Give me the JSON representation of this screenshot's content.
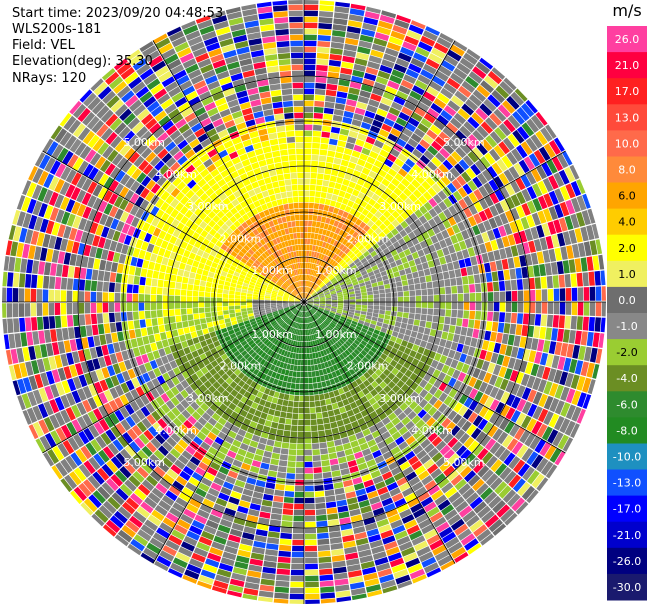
{
  "header": {
    "start_time": "Start time: 2023/09/20 04:48:53",
    "instrument": "WLS200s-181",
    "field": "Field: VEL",
    "elevation": "Elevation(deg): 35.30",
    "nrays": "NRays: 120"
  },
  "colorbar": {
    "unit": "m/s",
    "ticks": [
      "26.0",
      "21.0",
      "17.0",
      "13.0",
      "10.0",
      "8.0",
      "6.0",
      "4.0",
      "2.0",
      "1.0",
      "0.0",
      "-1.0",
      "-2.0",
      "-4.0",
      "-6.0",
      "-8.0",
      "-10.0",
      "-13.0",
      "-17.0",
      "-21.0",
      "-26.0",
      "-30.0"
    ],
    "colors": [
      "#ff3fa0",
      "#ff0040",
      "#ff2020",
      "#ff4a3a",
      "#ff6a4a",
      "#ff8a3a",
      "#ffa500",
      "#ffcc00",
      "#ffff00",
      "#f0f060",
      "#6e6e6e",
      "#888888",
      "#9acd32",
      "#6b8e23",
      "#2e8b2e",
      "#228b22",
      "#1e90c0",
      "#1050ff",
      "#0000ff",
      "#0000cd",
      "#000080",
      "#1a1a6e"
    ]
  },
  "chart_data": {
    "type": "heatmap",
    "projection": "polar PPI",
    "range_ring_labels": [
      "1.00km",
      "2.00km",
      "3.00km",
      "4.00km",
      "5.00km"
    ],
    "rays": 120,
    "field": "VEL",
    "units": "m/s"
  }
}
